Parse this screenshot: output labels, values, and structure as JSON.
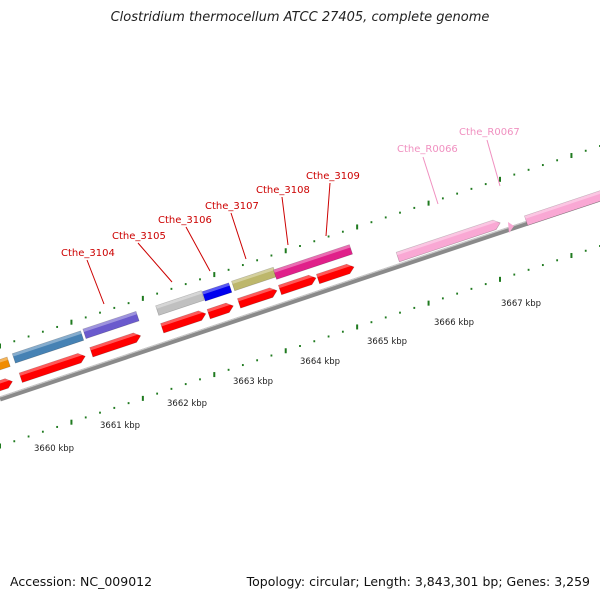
{
  "title": "Clostridium thermocellum ATCC 27405, complete genome",
  "footer": {
    "accession": "Accession: NC_009012",
    "topology": "Topology: circular; Length: 3,843,301 bp; Genes: 3,259"
  },
  "colors": {
    "backbone": "#8a8a8a",
    "tick": "#1f7a1f",
    "label": "#cc0000",
    "rna_label": "#f090c0",
    "cds": "#ff0000",
    "orange": "#f08c00",
    "steelblue": "#4682b4",
    "slateblue": "#6a5acd",
    "gray": "#c0c0c0",
    "blue": "#0000ee",
    "khaki": "#bdb76b",
    "magenta": "#e0208a",
    "pink": "#f9a8d4"
  },
  "scale": {
    "ticks": [
      {
        "label": "3660 kbp",
        "kbp": 3660
      },
      {
        "label": "3661 kbp",
        "kbp": 3661
      },
      {
        "label": "3662 kbp",
        "kbp": 3662
      },
      {
        "label": "3663 kbp",
        "kbp": 3663
      },
      {
        "label": "3664 kbp",
        "kbp": 3664
      },
      {
        "label": "3665 kbp",
        "kbp": 3665
      },
      {
        "label": "3666 kbp",
        "kbp": 3666
      },
      {
        "label": "3667 kbp",
        "kbp": 3667
      }
    ]
  },
  "labels": [
    {
      "text": "Cthe_3104",
      "kind": "gene"
    },
    {
      "text": "Cthe_3105",
      "kind": "gene"
    },
    {
      "text": "Cthe_3106",
      "kind": "gene"
    },
    {
      "text": "Cthe_3107",
      "kind": "gene"
    },
    {
      "text": "Cthe_3108",
      "kind": "gene"
    },
    {
      "text": "Cthe_3109",
      "kind": "gene"
    },
    {
      "text": "Cthe_R0066",
      "kind": "rna"
    },
    {
      "text": "Cthe_R0067",
      "kind": "rna"
    }
  ]
}
